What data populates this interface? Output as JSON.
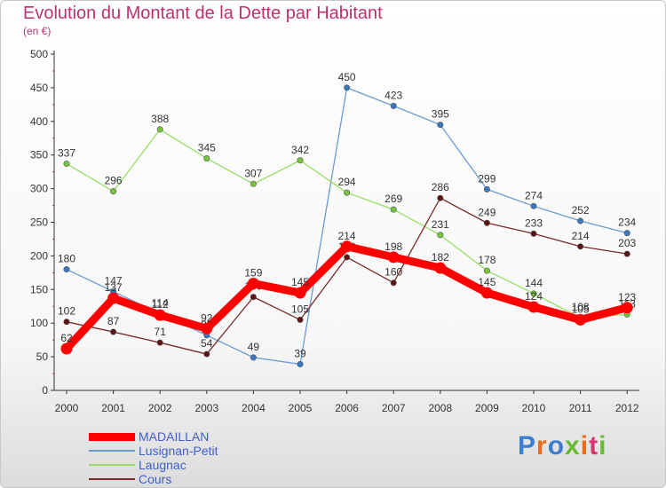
{
  "title": "Evolution du Montant de la Dette par Habitant",
  "subtitle": "(en €)",
  "logo": "Proxiti",
  "chart_data": {
    "type": "line",
    "categories": [
      "2000",
      "2001",
      "2002",
      "2003",
      "2004",
      "2005",
      "2006",
      "2007",
      "2008",
      "2009",
      "2010",
      "2011",
      "2012"
    ],
    "ylim": [
      0,
      500
    ],
    "yticks": [
      0,
      50,
      100,
      150,
      200,
      250,
      300,
      350,
      400,
      450,
      500
    ],
    "grid": false,
    "legend_position": "bottom-left",
    "series": [
      {
        "name": "Lusignan-Petit",
        "color": "#6b9bd2",
        "dot": "#3a78c0",
        "values": [
          180,
          147,
          114,
          82,
          49,
          39,
          450,
          423,
          395,
          299,
          274,
          252,
          234
        ]
      },
      {
        "name": "Laugnac",
        "color": "#99dd66",
        "dot": "#77c53a",
        "values": [
          337,
          296,
          388,
          345,
          307,
          342,
          294,
          269,
          231,
          178,
          144,
          108,
          113
        ]
      },
      {
        "name": "Cours",
        "color": "#7a2a2a",
        "dot": "#5a1414",
        "values": [
          102,
          87,
          71,
          54,
          139,
          105,
          198,
          160,
          286,
          249,
          233,
          214,
          203
        ]
      },
      {
        "name": "MADAILLAN",
        "color": "#ff0000",
        "dot": "#ff0000",
        "values": [
          62,
          137,
          112,
          92,
          159,
          145,
          214,
          198,
          182,
          145,
          124,
          105,
          123
        ]
      }
    ]
  }
}
